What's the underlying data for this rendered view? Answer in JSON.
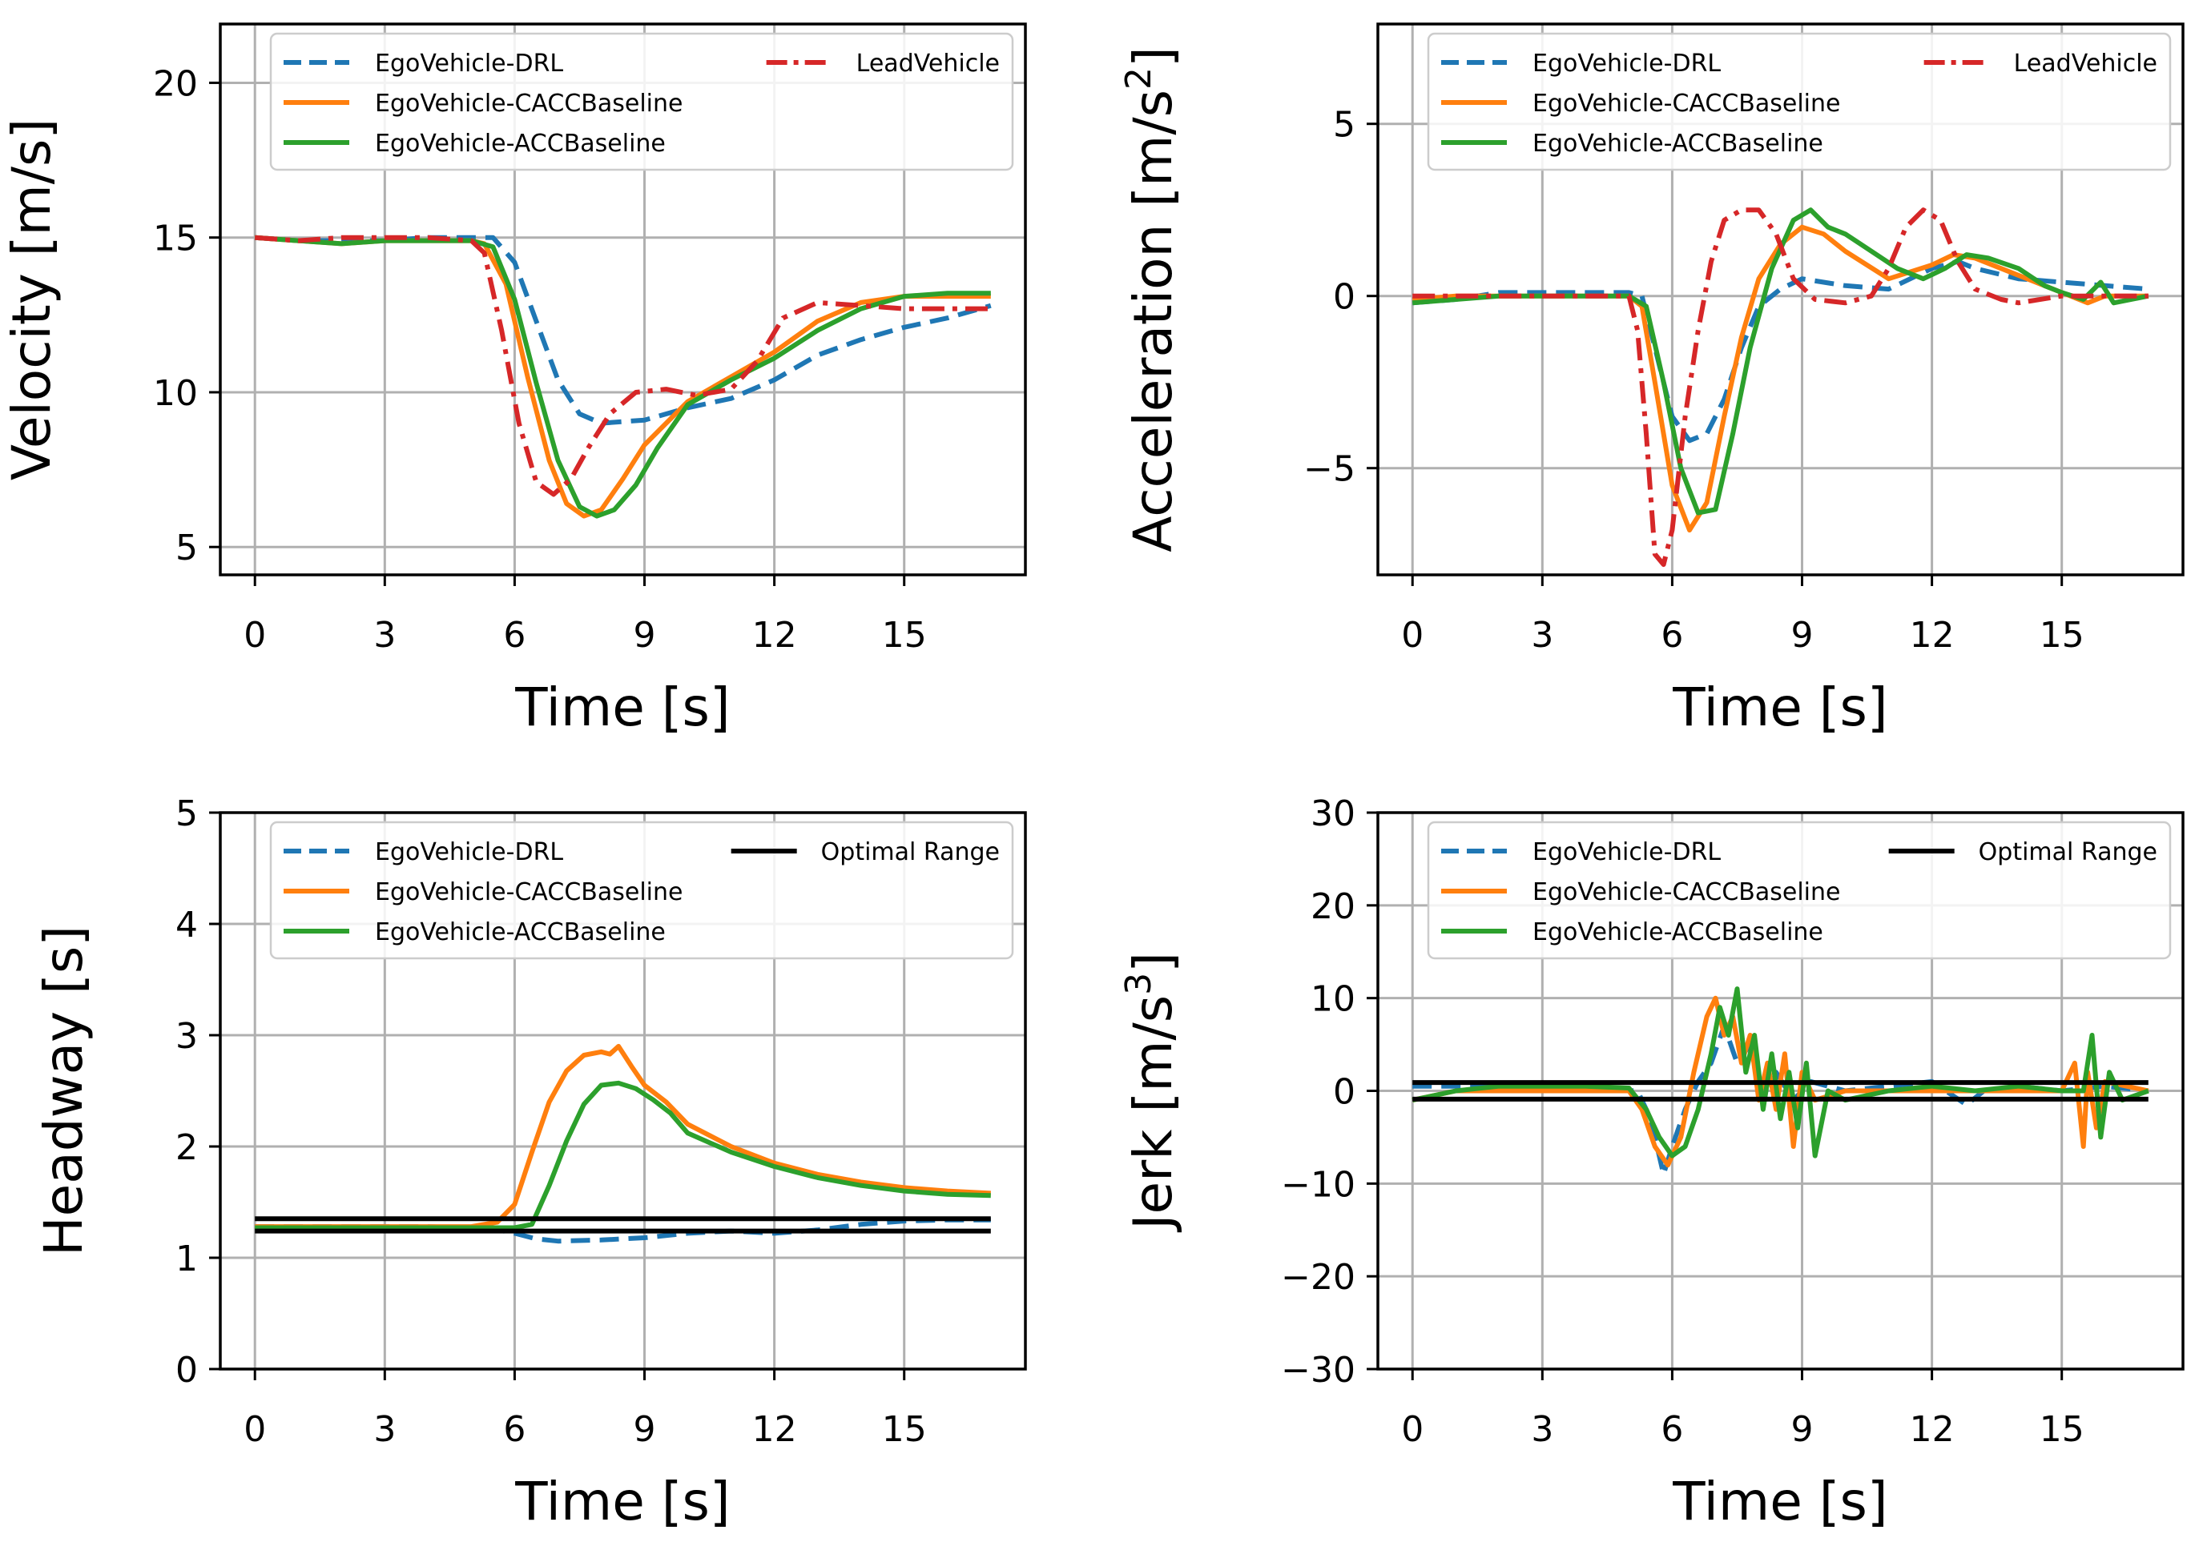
{
  "figure": {
    "time_ticks": [
      "0",
      "3",
      "6",
      "9",
      "12",
      "15"
    ],
    "time_label": "Time [s]"
  },
  "colors": {
    "drl": "#1f77b4",
    "cacc": "#ff7f0e",
    "acc": "#2ca02c",
    "lead": "#d62728",
    "optimal": "#000000",
    "grid": "#b0b0b0"
  },
  "chart_data": [
    {
      "id": "velocity",
      "type": "line",
      "ylabel": "Velocity [m/s]",
      "xlabel": "Time [s]",
      "xlim": [
        -0.8,
        17.8
      ],
      "ylim": [
        4.1,
        21.9
      ],
      "xticks": [
        0,
        3,
        6,
        9,
        12,
        15
      ],
      "yticks": [
        5,
        10,
        15,
        20
      ],
      "ytick_labels": [
        "5",
        "10",
        "15",
        "20"
      ],
      "legend": {
        "location": "top",
        "columns": 2
      },
      "series": [
        {
          "name": "EgoVehicle-DRL",
          "style": "dashed",
          "color": "#1f77b4",
          "x": [
            0,
            1,
            2,
            3,
            4,
            5,
            5.5,
            6,
            6.5,
            7,
            7.5,
            8,
            9,
            10,
            11,
            12,
            13,
            14,
            15,
            16,
            17
          ],
          "y": [
            15,
            14.9,
            14.9,
            14.9,
            15,
            15,
            15,
            14.2,
            12.3,
            10.4,
            9.3,
            9.0,
            9.1,
            9.5,
            9.8,
            10.4,
            11.2,
            11.7,
            12.1,
            12.4,
            12.8
          ]
        },
        {
          "name": "EgoVehicle-CACCBaseline",
          "style": "solid",
          "color": "#ff7f0e",
          "x": [
            0,
            1,
            2,
            3,
            4,
            5,
            5.3,
            5.8,
            6.3,
            6.8,
            7.2,
            7.6,
            8,
            8.5,
            9,
            10,
            11,
            12,
            13,
            14,
            15,
            16,
            17
          ],
          "y": [
            15,
            14.9,
            14.8,
            14.9,
            14.9,
            14.9,
            14.8,
            13.5,
            10.5,
            7.8,
            6.4,
            6.0,
            6.2,
            7.2,
            8.3,
            9.7,
            10.5,
            11.3,
            12.3,
            12.9,
            13.1,
            13.1,
            13.1
          ]
        },
        {
          "name": "EgoVehicle-ACCBaseline",
          "style": "solid",
          "color": "#2ca02c",
          "x": [
            0,
            1,
            2,
            3,
            4,
            5,
            5.5,
            6,
            6.5,
            7,
            7.5,
            7.9,
            8.3,
            8.8,
            9.3,
            10,
            11,
            12,
            13,
            14,
            15,
            16,
            17
          ],
          "y": [
            15,
            14.9,
            14.8,
            14.9,
            14.9,
            14.9,
            14.7,
            13.0,
            10.3,
            7.8,
            6.3,
            6.0,
            6.2,
            7.0,
            8.2,
            9.6,
            10.4,
            11.1,
            12.0,
            12.7,
            13.1,
            13.2,
            13.2
          ]
        },
        {
          "name": "LeadVehicle",
          "style": "dashdot",
          "color": "#d62728",
          "x": [
            0,
            1,
            2,
            3,
            4,
            5,
            5.3,
            5.7,
            6.1,
            6.5,
            6.9,
            7.3,
            7.7,
            8.2,
            8.8,
            9.5,
            10.2,
            11,
            11.6,
            12.2,
            13,
            14,
            15,
            16,
            17
          ],
          "y": [
            15,
            14.9,
            15,
            15,
            15,
            14.9,
            14.5,
            12.0,
            9.0,
            7.1,
            6.7,
            7.2,
            8.2,
            9.3,
            10.0,
            10.1,
            9.9,
            10.1,
            11.0,
            12.4,
            12.9,
            12.8,
            12.7,
            12.7,
            12.7
          ]
        }
      ]
    },
    {
      "id": "acceleration",
      "type": "line",
      "ylabel": "Acceleration [m/s²]",
      "ylabel_base": "Acceleration [m/s",
      "ylabel_sup": "2",
      "ylabel_end": "]",
      "xlabel": "Time [s]",
      "xlim": [
        -0.8,
        17.8
      ],
      "ylim": [
        -8.1,
        7.9
      ],
      "xticks": [
        0,
        3,
        6,
        9,
        12,
        15
      ],
      "yticks": [
        -5,
        0,
        5
      ],
      "ytick_labels": [
        "−5",
        "0",
        "5"
      ],
      "legend": {
        "location": "top",
        "columns": 2
      },
      "series": [
        {
          "name": "EgoVehicle-DRL",
          "style": "dashed",
          "color": "#1f77b4",
          "x": [
            0,
            1,
            2,
            3,
            4,
            5,
            5.3,
            5.6,
            6,
            6.4,
            6.8,
            7.2,
            7.6,
            8,
            8.5,
            9,
            10,
            11,
            12,
            12.6,
            13,
            14,
            15,
            16,
            17
          ],
          "y": [
            -0.2,
            -0.1,
            0.1,
            0.1,
            0.1,
            0.1,
            0,
            -1.5,
            -3.5,
            -4.2,
            -4.0,
            -3.0,
            -1.5,
            -0.3,
            0.2,
            0.5,
            0.3,
            0.2,
            0.8,
            1.0,
            0.8,
            0.5,
            0.4,
            0.3,
            0.2
          ]
        },
        {
          "name": "EgoVehicle-CACCBaseline",
          "style": "solid",
          "color": "#ff7f0e",
          "x": [
            0,
            1,
            2,
            3,
            4,
            5,
            5.3,
            5.6,
            6,
            6.4,
            6.8,
            7.2,
            7.6,
            8,
            8.5,
            9,
            9.5,
            10,
            11,
            12,
            12.5,
            13,
            14,
            15,
            15.6,
            16,
            17
          ],
          "y": [
            -0.1,
            0,
            0,
            0,
            0,
            0,
            -0.3,
            -2.5,
            -5.5,
            -6.8,
            -6.0,
            -3.5,
            -1.2,
            0.5,
            1.5,
            2.0,
            1.8,
            1.3,
            0.5,
            0.9,
            1.2,
            1.1,
            0.6,
            0.1,
            -0.2,
            0,
            0
          ]
        },
        {
          "name": "EgoVehicle-ACCBaseline",
          "style": "solid",
          "color": "#2ca02c",
          "x": [
            0,
            1,
            2,
            3,
            4,
            5,
            5.4,
            5.8,
            6.2,
            6.6,
            7,
            7.4,
            7.8,
            8.3,
            8.8,
            9.2,
            9.6,
            10,
            10.6,
            11.2,
            11.8,
            12.3,
            12.8,
            13.3,
            14,
            14.6,
            15,
            15.5,
            15.9,
            16.2,
            17
          ],
          "y": [
            -0.2,
            -0.1,
            0,
            0,
            0,
            0,
            -0.3,
            -2.5,
            -5.0,
            -6.3,
            -6.2,
            -4.0,
            -1.5,
            0.8,
            2.2,
            2.5,
            2.0,
            1.8,
            1.3,
            0.8,
            0.5,
            0.8,
            1.2,
            1.1,
            0.8,
            0.3,
            0.1,
            -0.1,
            0.4,
            -0.2,
            0
          ]
        },
        {
          "name": "LeadVehicle",
          "style": "dashdot",
          "color": "#d62728",
          "x": [
            0,
            1,
            2,
            3,
            4,
            5,
            5.2,
            5.4,
            5.6,
            5.8,
            6.0,
            6.3,
            6.6,
            6.9,
            7.2,
            7.6,
            8.0,
            8.4,
            8.8,
            9.3,
            10,
            10.6,
            11,
            11.4,
            11.8,
            12.2,
            12.6,
            13,
            13.6,
            14,
            15,
            16,
            17
          ],
          "y": [
            0,
            0,
            0,
            0,
            0,
            0,
            -1,
            -4,
            -7.5,
            -7.8,
            -6.8,
            -3.5,
            -1,
            1.0,
            2.2,
            2.5,
            2.5,
            1.8,
            0.5,
            -0.1,
            -0.2,
            0,
            0.8,
            2.0,
            2.5,
            2.2,
            1.0,
            0.2,
            -0.1,
            -0.2,
            0,
            0,
            0
          ]
        }
      ]
    },
    {
      "id": "headway",
      "type": "line",
      "ylabel": "Headway [s]",
      "xlabel": "Time [s]",
      "xlim": [
        -0.8,
        17.8
      ],
      "ylim": [
        0,
        5
      ],
      "xticks": [
        0,
        3,
        6,
        9,
        12,
        15
      ],
      "yticks": [
        0,
        1,
        2,
        3,
        4,
        5
      ],
      "ytick_labels": [
        "0",
        "1",
        "2",
        "3",
        "4",
        "5"
      ],
      "legend": {
        "location": "top",
        "columns": 2
      },
      "series": [
        {
          "name": "EgoVehicle-DRL",
          "style": "dashed",
          "color": "#1f77b4",
          "x": [
            0,
            2,
            4,
            5.5,
            6,
            6.5,
            7,
            8,
            9,
            10,
            11,
            12,
            13,
            14,
            15,
            16,
            17
          ],
          "y": [
            1.28,
            1.28,
            1.28,
            1.26,
            1.22,
            1.17,
            1.15,
            1.16,
            1.18,
            1.22,
            1.24,
            1.22,
            1.25,
            1.3,
            1.33,
            1.34,
            1.34
          ]
        },
        {
          "name": "EgoVehicle-CACCBaseline",
          "style": "solid",
          "color": "#ff7f0e",
          "x": [
            0,
            2,
            4,
            5,
            5.6,
            6,
            6.4,
            6.8,
            7.2,
            7.6,
            8.0,
            8.2,
            8.4,
            8.7,
            9.0,
            9.5,
            10,
            11,
            12,
            13,
            14,
            15,
            16,
            17
          ],
          "y": [
            1.28,
            1.28,
            1.28,
            1.28,
            1.32,
            1.48,
            1.95,
            2.4,
            2.68,
            2.82,
            2.85,
            2.83,
            2.9,
            2.72,
            2.55,
            2.4,
            2.2,
            2.0,
            1.85,
            1.75,
            1.68,
            1.63,
            1.6,
            1.58
          ]
        },
        {
          "name": "EgoVehicle-ACCBaseline",
          "style": "solid",
          "color": "#2ca02c",
          "x": [
            0,
            2,
            4,
            5,
            6,
            6.4,
            6.8,
            7.2,
            7.6,
            8.0,
            8.4,
            8.8,
            9.2,
            9.6,
            10,
            11,
            12,
            13,
            14,
            15,
            16,
            17
          ],
          "y": [
            1.27,
            1.27,
            1.27,
            1.27,
            1.27,
            1.3,
            1.65,
            2.05,
            2.38,
            2.55,
            2.57,
            2.52,
            2.42,
            2.3,
            2.12,
            1.95,
            1.82,
            1.72,
            1.65,
            1.6,
            1.57,
            1.56
          ]
        },
        {
          "name": "Optimal Range",
          "style": "solid",
          "color": "#000000",
          "x": [
            0,
            17
          ],
          "y": [
            1.35,
            1.35
          ]
        },
        {
          "name": "Optimal Range (lower)",
          "style": "solid",
          "color": "#000000",
          "in_legend": false,
          "x": [
            0,
            17
          ],
          "y": [
            1.24,
            1.24
          ]
        }
      ]
    },
    {
      "id": "jerk",
      "type": "line",
      "ylabel": "Jerk [m/s³]",
      "ylabel_base": "Jerk [m/s",
      "ylabel_sup": "3",
      "ylabel_end": "]",
      "xlabel": "Time [s]",
      "xlim": [
        -0.8,
        17.8
      ],
      "ylim": [
        -30,
        30
      ],
      "xticks": [
        0,
        3,
        6,
        9,
        12,
        15
      ],
      "yticks": [
        -30,
        -20,
        -10,
        0,
        10,
        20,
        30
      ],
      "ytick_labels": [
        "−30",
        "−20",
        "−10",
        "0",
        "10",
        "20",
        "30"
      ],
      "legend": {
        "location": "top",
        "columns": 2
      },
      "series": [
        {
          "name": "EgoVehicle-DRL",
          "style": "dashed",
          "color": "#1f77b4",
          "x": [
            0,
            2,
            4,
            5.2,
            5.5,
            5.8,
            6.0,
            6.3,
            6.6,
            6.9,
            7.2,
            7.5,
            7.8,
            8.1,
            8.4,
            8.8,
            9.2,
            10,
            11,
            12,
            12.8,
            13.2,
            14,
            15,
            16,
            17
          ],
          "y": [
            0.5,
            0.5,
            0.2,
            0,
            -3,
            -9,
            -6,
            -2,
            1,
            3,
            7,
            3,
            5,
            0,
            2,
            -1,
            1,
            0,
            0.5,
            1,
            -1.5,
            0,
            0.5,
            0,
            0.5,
            0
          ]
        },
        {
          "name": "EgoVehicle-CACCBaseline",
          "style": "solid",
          "color": "#ff7f0e",
          "x": [
            0,
            1,
            2,
            3,
            4,
            5,
            5.3,
            5.6,
            5.9,
            6.2,
            6.5,
            6.8,
            7.0,
            7.2,
            7.4,
            7.6,
            7.8,
            8.0,
            8.2,
            8.4,
            8.6,
            8.8,
            9.0,
            9.3,
            10,
            11,
            12,
            13,
            14,
            15,
            15.3,
            15.5,
            15.6,
            15.8,
            16,
            17
          ],
          "y": [
            -1,
            0,
            0,
            0,
            0,
            0,
            -2,
            -6,
            -8,
            -5,
            2,
            8,
            10,
            6,
            8,
            3,
            6,
            -1,
            3,
            -2,
            4,
            -6,
            2,
            -1,
            0,
            0,
            0,
            0,
            0,
            0,
            3,
            -6,
            2,
            -4,
            1,
            0
          ]
        },
        {
          "name": "EgoVehicle-ACCBaseline",
          "style": "solid",
          "color": "#2ca02c",
          "x": [
            0,
            1,
            2,
            3,
            4,
            5,
            5.4,
            5.7,
            6.0,
            6.3,
            6.6,
            6.9,
            7.1,
            7.3,
            7.5,
            7.7,
            7.9,
            8.1,
            8.3,
            8.5,
            8.7,
            8.9,
            9.1,
            9.3,
            9.6,
            10,
            11,
            12,
            13,
            14,
            15,
            15.5,
            15.7,
            15.9,
            16.1,
            16.4,
            17
          ],
          "y": [
            -1,
            0,
            0.5,
            0.5,
            0.5,
            0.3,
            -2,
            -5,
            -7,
            -6,
            -2,
            4,
            9,
            6,
            11,
            2,
            6,
            -2,
            4,
            -3,
            2,
            -4,
            3,
            -7,
            0,
            -1,
            0,
            0.5,
            0,
            0.5,
            0,
            0,
            6,
            -5,
            2,
            -1,
            0
          ]
        },
        {
          "name": "Optimal Range",
          "style": "solid",
          "color": "#000000",
          "x": [
            0,
            17
          ],
          "y": [
            0.9,
            0.9
          ]
        },
        {
          "name": "Optimal Range (lower)",
          "style": "solid",
          "color": "#000000",
          "in_legend": false,
          "x": [
            0,
            17
          ],
          "y": [
            -0.9,
            -0.9
          ]
        }
      ]
    }
  ]
}
